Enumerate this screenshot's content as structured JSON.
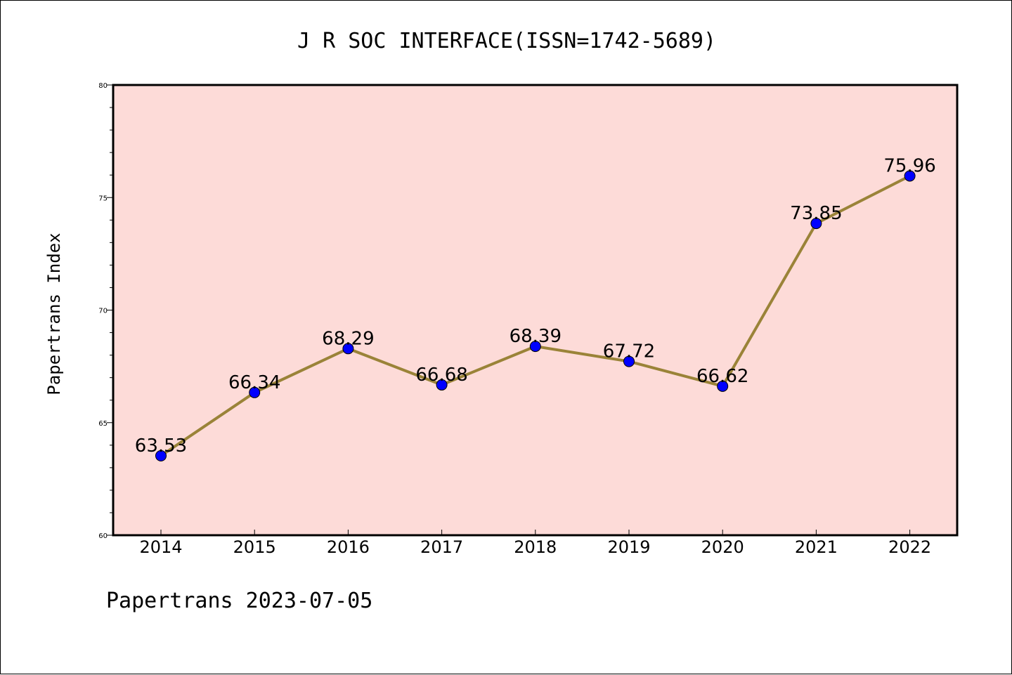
{
  "title": "J R SOC INTERFACE(ISSN=1742-5689)",
  "footer": "Papertrans 2023-07-05",
  "colors": {
    "plot_background": "#fddbd8",
    "line": "#9a8338",
    "marker": "#0000ff"
  },
  "chart_data": {
    "type": "line",
    "title": "J R SOC INTERFACE(ISSN=1742-5689)",
    "xlabel": "",
    "ylabel": "Papertrans Index",
    "categories": [
      "2014",
      "2015",
      "2016",
      "2017",
      "2018",
      "2019",
      "2020",
      "2021",
      "2022"
    ],
    "values": [
      63.53,
      66.34,
      68.29,
      66.68,
      68.39,
      67.72,
      66.62,
      73.85,
      75.96
    ],
    "data_labels": [
      "63.53",
      "66.34",
      "68.29",
      "66.68",
      "68.39",
      "67.72",
      "66.62",
      "73.85",
      "75.96"
    ],
    "ylim": [
      60,
      80
    ],
    "yticks": [
      60,
      65,
      70,
      75,
      80
    ],
    "ytick_labels": [
      "60",
      "65",
      "70",
      "75",
      "80"
    ],
    "grid": false,
    "legend": "none"
  }
}
